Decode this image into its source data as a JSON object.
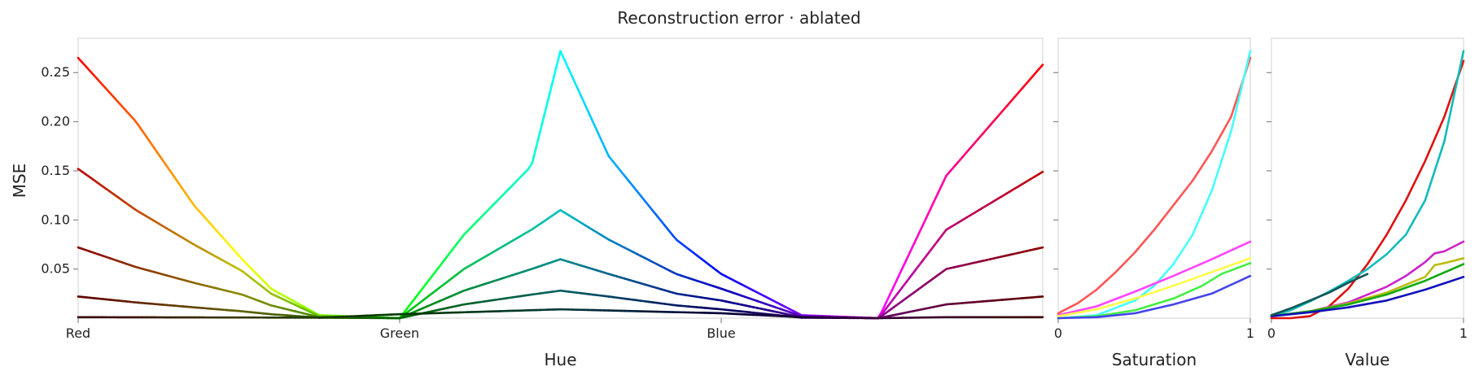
{
  "chart_data": {
    "type": "line",
    "title": "Reconstruction error · ablated",
    "ylabel": "MSE",
    "ylim": [
      0,
      0.285
    ],
    "yticks": [
      0.05,
      0.1,
      0.15,
      0.2,
      0.25
    ],
    "ytick_labels": [
      "0.05",
      "0.10",
      "0.15",
      "0.20",
      "0.25"
    ],
    "grid": false,
    "panels": [
      {
        "id": "hue",
        "xlabel": "Hue",
        "xlim": [
          0,
          1
        ],
        "xticks": [
          0,
          0.3333,
          0.6667
        ],
        "xtick_labels": [
          "Red",
          "Green",
          "Blue"
        ],
        "series": [
          {
            "sv": 1.0,
            "x": [
              0,
              0.06,
              0.12,
              0.17,
              0.2,
              0.25,
              0.3333,
              0.4,
              0.47,
              0.5,
              0.55,
              0.62,
              0.6667,
              0.75,
              0.83,
              0.9,
              1.0
            ],
            "y": [
              0.265,
              0.2,
              0.115,
              0.06,
              0.03,
              0.003,
              0,
              0.085,
              0.155,
              0.272,
              0.165,
              0.08,
              0.045,
              0.003,
              0,
              0.145,
              0.258
            ]
          },
          {
            "sv": 0.75,
            "x": [
              0,
              0.06,
              0.12,
              0.17,
              0.2,
              0.25,
              0.3333,
              0.4,
              0.47,
              0.5,
              0.55,
              0.62,
              0.6667,
              0.75,
              0.83,
              0.9,
              1.0
            ],
            "y": [
              0.152,
              0.11,
              0.075,
              0.048,
              0.025,
              0.002,
              0,
              0.05,
              0.09,
              0.11,
              0.08,
              0.045,
              0.03,
              0.002,
              0,
              0.09,
              0.149
            ]
          },
          {
            "sv": 0.55,
            "x": [
              0,
              0.06,
              0.12,
              0.17,
              0.2,
              0.25,
              0.3333,
              0.4,
              0.47,
              0.5,
              0.55,
              0.62,
              0.6667,
              0.75,
              0.83,
              0.9,
              1.0
            ],
            "y": [
              0.072,
              0.052,
              0.036,
              0.024,
              0.013,
              0.001,
              0,
              0.028,
              0.05,
              0.06,
              0.045,
              0.025,
              0.018,
              0.001,
              0,
              0.05,
              0.072
            ]
          },
          {
            "sv": 0.38,
            "x": [
              0,
              0.06,
              0.12,
              0.17,
              0.2,
              0.25,
              0.3333,
              0.4,
              0.47,
              0.5,
              0.55,
              0.62,
              0.6667,
              0.75,
              0.83,
              0.9,
              1.0
            ],
            "y": [
              0.022,
              0.016,
              0.011,
              0.007,
              0.004,
              0.0005,
              0,
              0.014,
              0.024,
              0.028,
              0.022,
              0.013,
              0.009,
              0.0005,
              0,
              0.014,
              0.022
            ]
          },
          {
            "sv": 0.22,
            "x": [
              0,
              0.25,
              0.3333,
              0.4,
              0.5,
              0.6667,
              0.75,
              0.83,
              0.9,
              1.0
            ],
            "y": [
              0.001,
              0.0005,
              0.004,
              0.006,
              0.009,
              0.005,
              0.001,
              0,
              0.001,
              0.001
            ]
          }
        ]
      },
      {
        "id": "saturation",
        "xlabel": "Saturation",
        "xlim": [
          0,
          1
        ],
        "xticks": [
          0,
          1
        ],
        "xtick_labels": [
          "0",
          "1"
        ],
        "series": [
          {
            "color": "#ff5555",
            "x": [
              0,
              0.1,
              0.2,
              0.3,
              0.4,
              0.5,
              0.6,
              0.7,
              0.8,
              0.9,
              1.0
            ],
            "y": [
              0.005,
              0.015,
              0.029,
              0.047,
              0.067,
              0.09,
              0.115,
              0.14,
              0.17,
              0.205,
              0.265
            ]
          },
          {
            "color": "#44ffff",
            "x": [
              0,
              0.2,
              0.4,
              0.5,
              0.6,
              0.7,
              0.8,
              0.9,
              1.0
            ],
            "y": [
              0,
              0.003,
              0.018,
              0.033,
              0.055,
              0.085,
              0.13,
              0.19,
              0.272
            ]
          },
          {
            "color": "#ff44ff",
            "x": [
              0,
              0.2,
              0.4,
              0.6,
              0.8,
              1.0
            ],
            "y": [
              0.003,
              0.012,
              0.027,
              0.043,
              0.06,
              0.078
            ]
          },
          {
            "color": "#ffff44",
            "x": [
              0,
              0.2,
              0.4,
              0.6,
              0.8,
              1.0
            ],
            "y": [
              0.002,
              0.009,
              0.02,
              0.033,
              0.047,
              0.061
            ]
          },
          {
            "color": "#44ee44",
            "x": [
              0,
              0.2,
              0.4,
              0.6,
              0.75,
              0.85,
              1.0
            ],
            "y": [
              0,
              0.002,
              0.008,
              0.02,
              0.033,
              0.045,
              0.056
            ]
          },
          {
            "color": "#4444ee",
            "x": [
              0,
              0.2,
              0.4,
              0.6,
              0.8,
              0.9,
              1.0
            ],
            "y": [
              0,
              0.001,
              0.005,
              0.014,
              0.025,
              0.034,
              0.043
            ]
          }
        ]
      },
      {
        "id": "value",
        "xlabel": "Value",
        "xlim": [
          0,
          1
        ],
        "xticks": [
          0,
          1
        ],
        "xtick_labels": [
          "0",
          "1"
        ],
        "series": [
          {
            "color": "#dd1111",
            "x": [
              0,
              0.1,
              0.2,
              0.3,
              0.4,
              0.5,
              0.6,
              0.7,
              0.8,
              0.9,
              1.0
            ],
            "y": [
              0,
              0,
              0.002,
              0.012,
              0.03,
              0.055,
              0.085,
              0.12,
              0.16,
              0.205,
              0.262
            ]
          },
          {
            "color": "#11bbbb",
            "x": [
              0,
              0.1,
              0.2,
              0.3,
              0.4,
              0.5,
              0.6,
              0.7,
              0.8,
              0.9,
              1.0
            ],
            "y": [
              0.002,
              0.008,
              0.017,
              0.027,
              0.038,
              0.05,
              0.065,
              0.085,
              0.12,
              0.18,
              0.272
            ]
          },
          {
            "color": "#cc22cc",
            "x": [
              0,
              0.2,
              0.4,
              0.6,
              0.7,
              0.8,
              0.85,
              0.9,
              1.0
            ],
            "y": [
              0.002,
              0.007,
              0.016,
              0.032,
              0.043,
              0.057,
              0.066,
              0.068,
              0.078
            ]
          },
          {
            "color": "#bbbb11",
            "x": [
              0,
              0.2,
              0.4,
              0.6,
              0.8,
              0.85,
              0.9,
              1.0
            ],
            "y": [
              0.002,
              0.007,
              0.015,
              0.026,
              0.042,
              0.054,
              0.056,
              0.061
            ]
          },
          {
            "color": "#11aa11",
            "x": [
              0,
              0.2,
              0.4,
              0.6,
              0.8,
              1.0
            ],
            "y": [
              0.002,
              0.007,
              0.014,
              0.024,
              0.038,
              0.055
            ]
          },
          {
            "color": "#1111bb",
            "x": [
              0,
              0.2,
              0.4,
              0.6,
              0.8,
              1.0
            ],
            "y": [
              0.002,
              0.006,
              0.011,
              0.018,
              0.029,
              0.042
            ]
          },
          {
            "color": "#115555",
            "x": [
              0,
              0.1,
              0.2,
              0.3,
              0.4,
              0.5
            ],
            "y": [
              0.003,
              0.01,
              0.018,
              0.026,
              0.036,
              0.045
            ]
          }
        ]
      }
    ]
  }
}
